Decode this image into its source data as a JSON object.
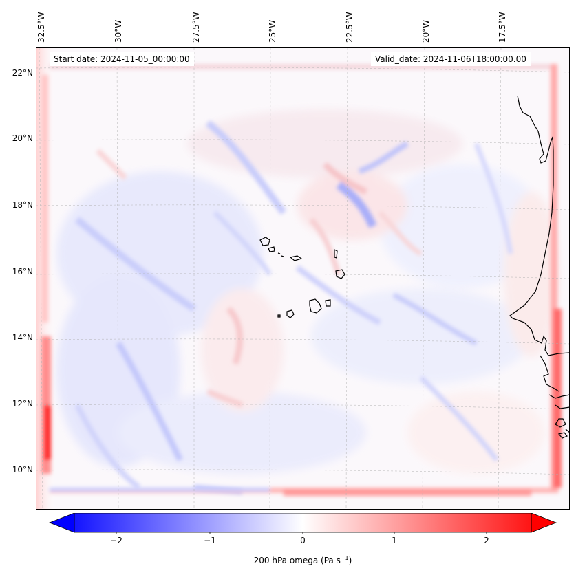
{
  "map": {
    "start_date_label": "Start date: 2024-11-05_00:00:00",
    "valid_date_label": "Valid_date: 2024-11-06T18:00:00.00",
    "longitude_labels": [
      "32.5°W",
      "30°W",
      "27.5°W",
      "25°W",
      "22.5°W",
      "20°W",
      "17.5°W"
    ],
    "latitude_labels": [
      "22°N",
      "20°N",
      "18°N",
      "16°N",
      "14°N",
      "12°N",
      "10°N"
    ],
    "field": "200 hPa omega",
    "colormap": {
      "negative": "#0000ff",
      "zero": "#ffffff",
      "positive": "#ff0000"
    }
  },
  "colorbar": {
    "ticks": [
      "−2",
      "−1",
      "0",
      "1",
      "2"
    ],
    "label": "200 hPa omega (Pa s",
    "label_sup": "−1",
    "label_end": ")",
    "range": [
      -2.7,
      2.7
    ]
  }
}
